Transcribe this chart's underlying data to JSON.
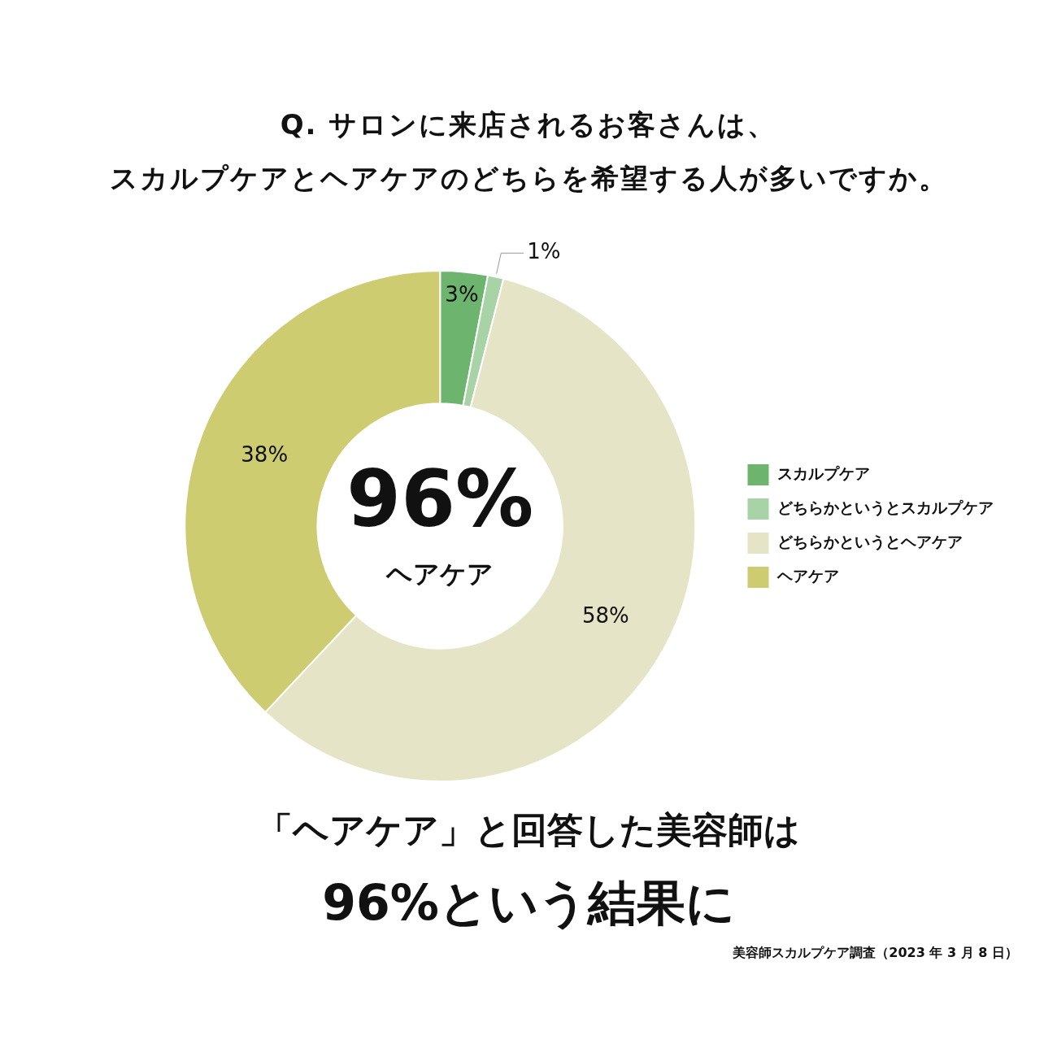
{
  "chart_data": {
    "type": "donut",
    "title": "Q. サロンに来店されるお客さんは、",
    "subtitle": "スカルプケアとヘアケアのどちらを希望する人が多いですか。",
    "categories": [
      "スカルプケア",
      "どちらかというとスカルプケア",
      "どちらかというとヘアケア",
      "ヘアケア"
    ],
    "values": [
      3,
      1,
      58,
      38
    ],
    "colors": [
      "#6db56f",
      "#a8d3a6",
      "#e5e4c6",
      "#cdcc70"
    ],
    "value_labels": [
      "3%",
      "1%",
      "58%",
      "38%"
    ],
    "legend": "right",
    "annotations": [
      "96%",
      "ヘアケア",
      "「ヘアケア」と回答した美容師は",
      "96%という結果に",
      "美容師スカルプケア調査（2023 年 3 月 8 日）"
    ]
  }
}
